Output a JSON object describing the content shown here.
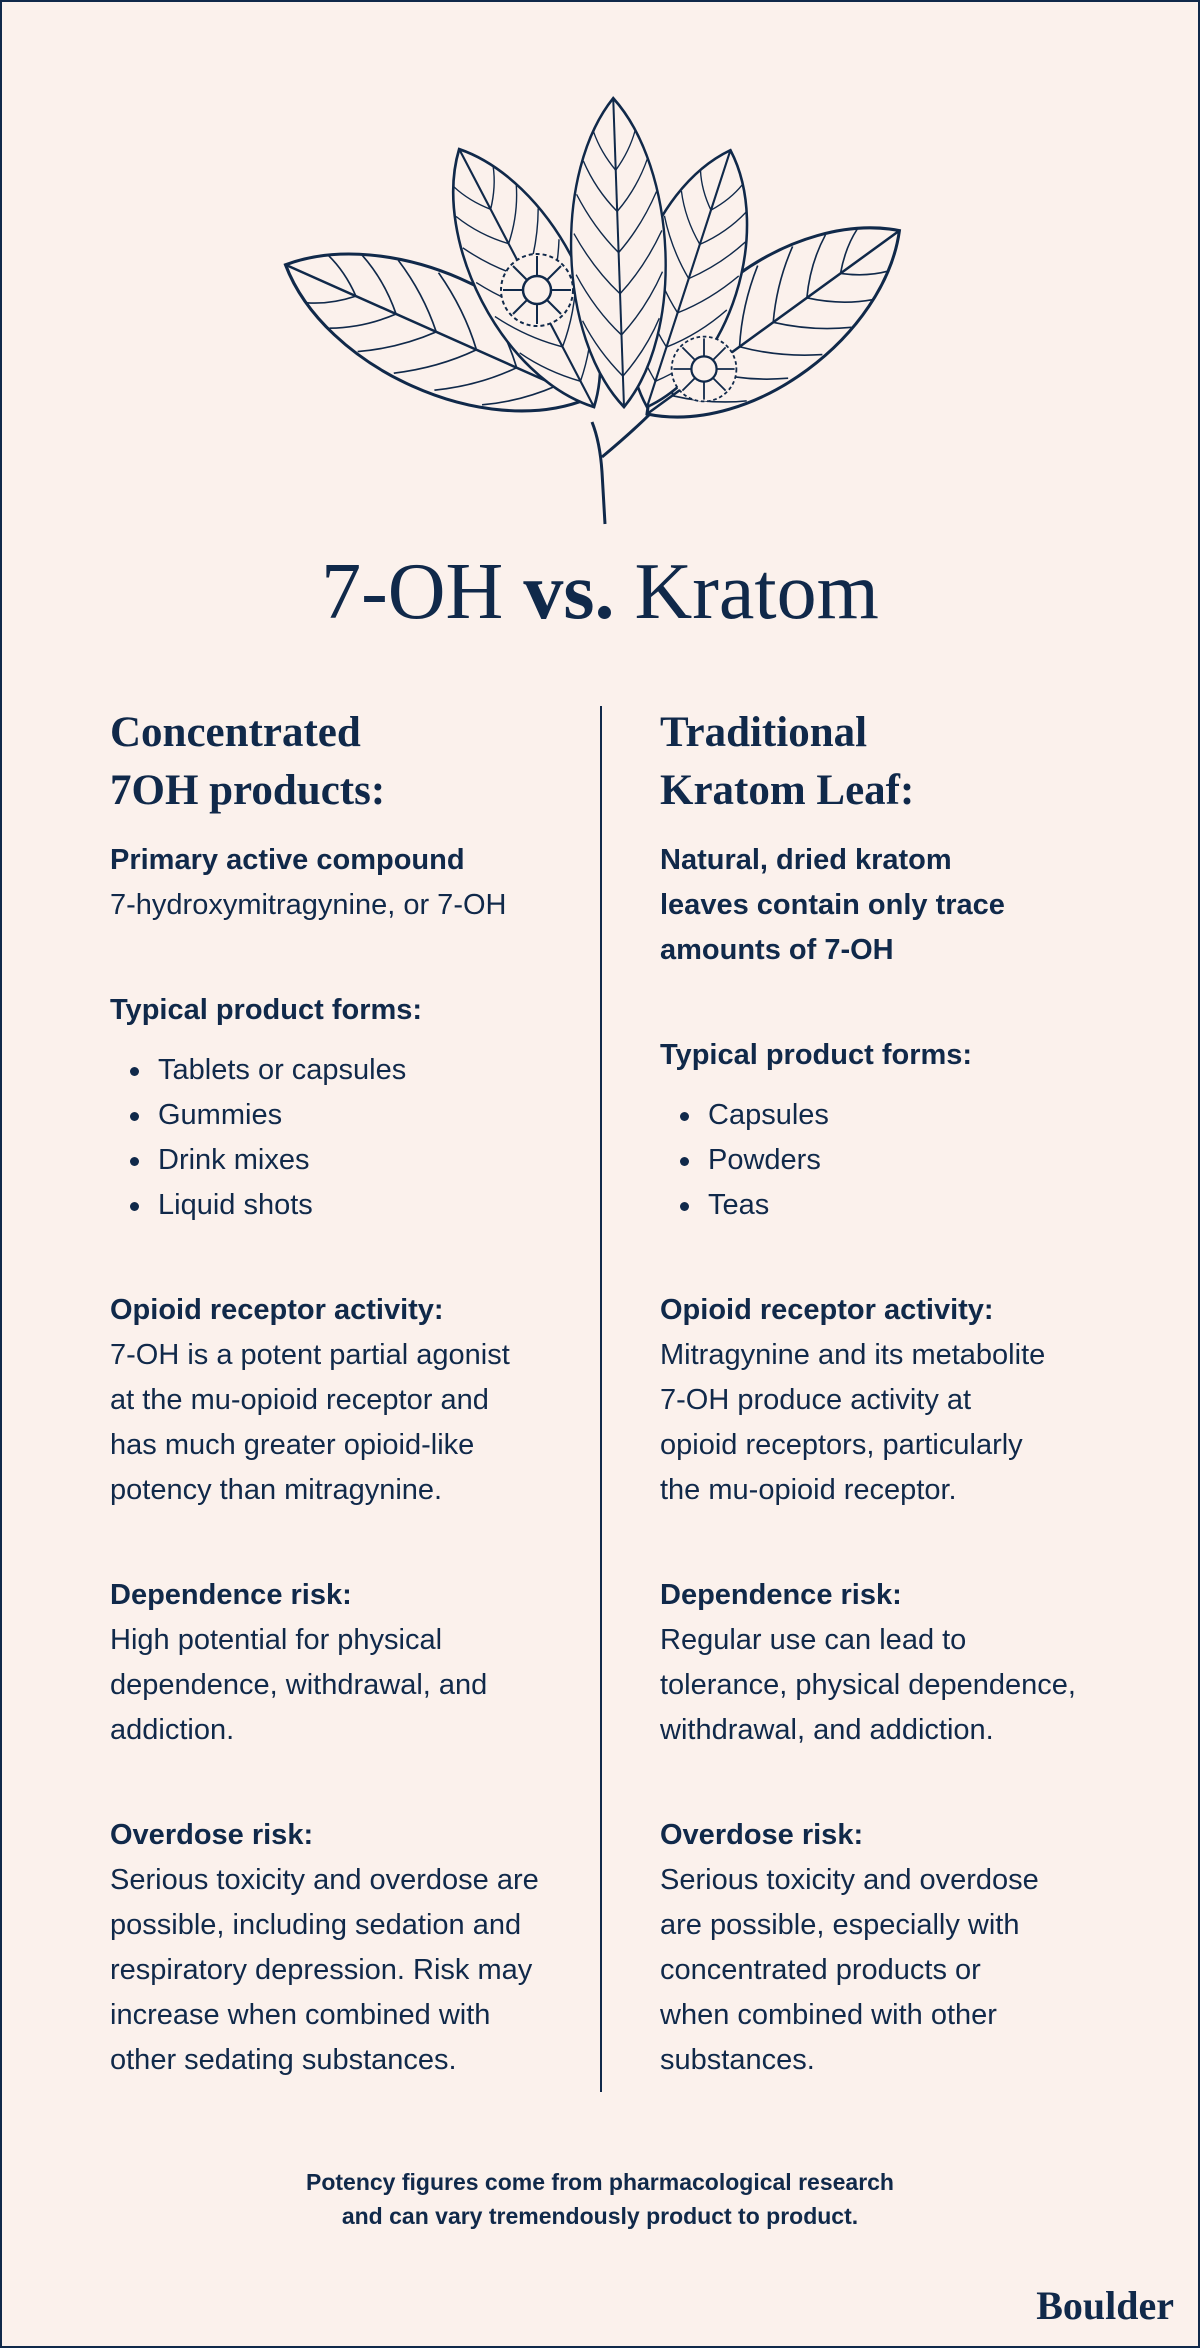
{
  "title": {
    "parts": [
      "7-OH",
      "vs.",
      "Kratom"
    ]
  },
  "columns": [
    {
      "heading": [
        "Concentrated",
        "7OH products:"
      ],
      "sections": [
        {
          "label": "Primary active compound",
          "text": [
            "7-hydroxymitragynine, or 7-OH"
          ]
        },
        {
          "label": "Typical product forms:",
          "items": [
            "Tablets or capsules",
            "Gummies",
            "Drink mixes",
            "Liquid shots"
          ]
        },
        {
          "label": "Opioid receptor activity:",
          "text": [
            "7-OH is a potent partial agonist",
            "at the mu-opioid receptor and",
            "has much greater opioid-like",
            "potency than mitragynine."
          ]
        },
        {
          "label": "Dependence risk:",
          "text": [
            "High potential for physical",
            "dependence, withdrawal, and",
            "addiction."
          ]
        },
        {
          "label": "Overdose risk:",
          "text": [
            "Serious toxicity and overdose are",
            "possible, including sedation and",
            "respiratory depression. Risk may",
            "increase when combined with",
            "other sedating substances."
          ]
        }
      ]
    },
    {
      "heading": [
        "Traditional",
        "Kratom Leaf:"
      ],
      "sections": [
        {
          "label": [
            "Natural, dried kratom",
            "leaves contain only trace",
            "amounts of 7-OH"
          ]
        },
        {
          "label": "Typical product forms:",
          "items": [
            "Capsules",
            "Powders",
            "Teas"
          ]
        },
        {
          "label": "Opioid receptor activity:",
          "text": [
            "Mitragynine and its metabolite",
            "7-OH produce activity at",
            "opioid receptors, particularly",
            "the mu-opioid receptor."
          ]
        },
        {
          "label": "Dependence risk:",
          "text": [
            "Regular use can lead to",
            "tolerance, physical dependence,",
            "withdrawal, and addiction."
          ]
        },
        {
          "label": "Overdose risk:",
          "text": [
            "Serious toxicity and overdose",
            "are possible, especially with",
            "concentrated products or",
            "when combined with other",
            "substances."
          ]
        }
      ]
    }
  ],
  "footnote": [
    "Potency figures come from pharmacological research",
    "and can vary tremendously product to product."
  ],
  "brand": "Boulder"
}
